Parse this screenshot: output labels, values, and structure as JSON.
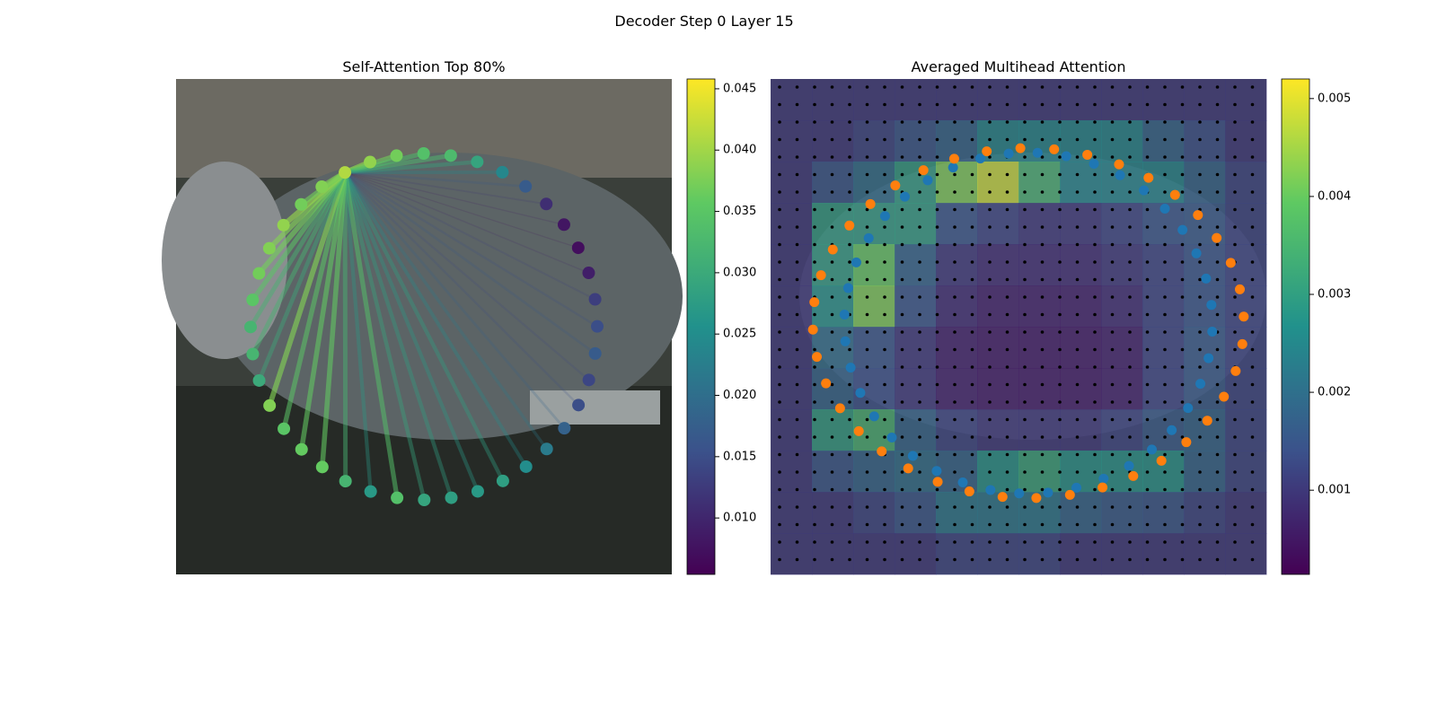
{
  "title": "Decoder Step 0 Layer 15",
  "chart_data": [
    {
      "type": "attention-graph",
      "title": "Self-Attention Top 80%",
      "colormap": "viridis",
      "values": [
        0.041,
        0.039,
        0.037,
        0.034,
        0.033,
        0.029,
        0.024,
        0.017,
        0.011,
        0.008,
        0.007,
        0.009,
        0.013,
        0.015,
        0.017,
        0.014,
        0.015,
        0.018,
        0.022,
        0.025,
        0.028,
        0.027,
        0.028,
        0.029,
        0.034,
        0.027,
        0.032,
        0.036,
        0.036,
        0.035,
        0.038,
        0.03,
        0.032,
        0.032,
        0.035,
        0.037,
        0.038,
        0.039,
        0.037,
        0.038
      ],
      "ylim": [
        0.0054,
        0.0458
      ],
      "yticks": [
        {
          "value": 0.01,
          "label": "0.010"
        },
        0.015,
        {
          "value": 0.02,
          "label": "0.020"
        },
        0.025,
        {
          "value": 0.03,
          "label": "0.030"
        },
        0.035,
        {
          "value": 0.04,
          "label": "0.040"
        },
        0.045
      ]
    },
    {
      "type": "heatmap",
      "title": "Averaged Multihead Attention",
      "colormap": "viridis",
      "values": [
        [
          0.001,
          0.001,
          0.001,
          0.001,
          0.001,
          0.001,
          0.001,
          0.001,
          0.001,
          0.001,
          0.001,
          0.001
        ],
        [
          0.001,
          0.001,
          0.0012,
          0.0015,
          0.0018,
          0.0025,
          0.0025,
          0.0025,
          0.0025,
          0.0018,
          0.0014,
          0.001
        ],
        [
          0.001,
          0.0015,
          0.002,
          0.003,
          0.0042,
          0.0048,
          0.0035,
          0.0025,
          0.0025,
          0.0025,
          0.0018,
          0.0012
        ],
        [
          0.001,
          0.003,
          0.003,
          0.003,
          0.0015,
          0.0012,
          0.001,
          0.001,
          0.0012,
          0.0015,
          0.0016,
          0.0012
        ],
        [
          0.001,
          0.003,
          0.004,
          0.0018,
          0.001,
          0.0008,
          0.0008,
          0.0008,
          0.001,
          0.0012,
          0.0015,
          0.0012
        ],
        [
          0.001,
          0.0028,
          0.0042,
          0.0015,
          0.0008,
          0.0006,
          0.0006,
          0.0006,
          0.0008,
          0.0012,
          0.0015,
          0.0012
        ],
        [
          0.001,
          0.002,
          0.0015,
          0.001,
          0.0006,
          0.0005,
          0.0005,
          0.0005,
          0.0006,
          0.0012,
          0.0016,
          0.0012
        ],
        [
          0.001,
          0.0018,
          0.0014,
          0.001,
          0.0006,
          0.0005,
          0.0005,
          0.0005,
          0.0006,
          0.0012,
          0.0016,
          0.0012
        ],
        [
          0.001,
          0.003,
          0.0035,
          0.0018,
          0.0012,
          0.001,
          0.001,
          0.001,
          0.0012,
          0.0016,
          0.0018,
          0.0012
        ],
        [
          0.001,
          0.0015,
          0.0018,
          0.002,
          0.0018,
          0.0028,
          0.0032,
          0.0028,
          0.0028,
          0.0028,
          0.0018,
          0.0012
        ],
        [
          0.001,
          0.001,
          0.0012,
          0.0015,
          0.0022,
          0.0022,
          0.0022,
          0.0018,
          0.0016,
          0.0015,
          0.0012,
          0.001
        ],
        [
          0.001,
          0.001,
          0.001,
          0.001,
          0.0012,
          0.0012,
          0.0012,
          0.001,
          0.001,
          0.001,
          0.001,
          0.001
        ]
      ],
      "ylim": [
        0.00014,
        0.0052
      ],
      "yticks": [
        0.001,
        0.002,
        0.003,
        0.004,
        0.005
      ]
    }
  ]
}
